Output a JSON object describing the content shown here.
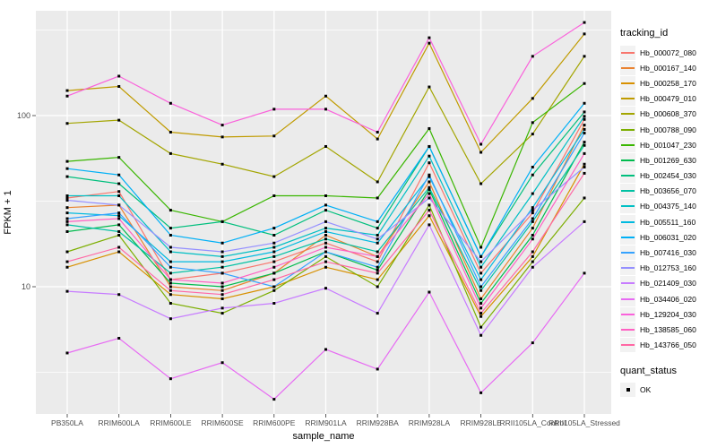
{
  "figure": {
    "panel_bg": "#EBEBEB",
    "grid_major_color": "#FFFFFF",
    "grid_minor_color": "#FFFFFF",
    "tick_color": "#333333",
    "tick_label_color": "#4D4D4D",
    "axis_title_color": "#000000",
    "marker_color": "#000000",
    "legend_key_bg": "#F2F2F2"
  },
  "axes": {
    "x_title": "sample_name",
    "y_title": "FPKM + 1",
    "y_ticks": [
      {
        "label": "100",
        "value": 100
      },
      {
        "label": "10",
        "value": 10
      }
    ],
    "y_minor_values": [
      3.162,
      31.62,
      316.2
    ]
  },
  "legend": {
    "tracking_title": "tracking_id",
    "quant_title": "quant_status",
    "quant_items": [
      {
        "label": "OK",
        "marker": "black-square-icon"
      }
    ]
  },
  "chart_data": {
    "type": "line",
    "title": "",
    "xlabel": "sample_name",
    "ylabel": "FPKM + 1",
    "y_scale": "log10",
    "ylim": [
      2,
      420
    ],
    "grid": true,
    "legend_position": "right",
    "marker": "small black square (quant_status = OK)",
    "categories": [
      "PB350LA",
      "RRIM600LA",
      "RRIM600LE",
      "RRIM600SE",
      "RRIM600PE",
      "RRIM901LA",
      "RRIM928BA",
      "RRIM928LA",
      "RRIM928LE",
      "RRII105LA_Control",
      "RRII105LA_Stressed"
    ],
    "series": [
      {
        "name": "Hb_000072_080",
        "color": "#F8766D",
        "values": [
          33,
          36,
          11,
          12,
          14,
          18,
          14,
          53,
          12,
          27,
          95
        ]
      },
      {
        "name": "Hb_000167_140",
        "color": "#EA8331",
        "values": [
          29,
          30,
          10,
          9.5,
          12,
          20,
          15,
          41,
          8.5,
          22,
          88
        ]
      },
      {
        "name": "Hb_000258_170",
        "color": "#D89000",
        "values": [
          13,
          16,
          9,
          8.5,
          10,
          13,
          11,
          26,
          6.7,
          15,
          52
        ]
      },
      {
        "name": "Hb_000479_010",
        "color": "#C09B00",
        "values": [
          140,
          148,
          80,
          75,
          76,
          130,
          73,
          265,
          61,
          126,
          300
        ]
      },
      {
        "name": "Hb_000608_370",
        "color": "#A3A500",
        "values": [
          90,
          94,
          60,
          52,
          44,
          66,
          41,
          147,
          40,
          78,
          222
        ]
      },
      {
        "name": "Hb_000788_090",
        "color": "#7CAE00",
        "values": [
          16,
          20,
          8,
          7,
          9.5,
          15,
          10,
          30,
          5.8,
          14,
          33
        ]
      },
      {
        "name": "Hb_001047_230",
        "color": "#39B600",
        "values": [
          54,
          57,
          28,
          24,
          34,
          34,
          33,
          84,
          17,
          91,
          154
        ]
      },
      {
        "name": "Hb_001269_630",
        "color": "#00BB4E",
        "values": [
          21,
          23,
          10.5,
          10,
          12,
          16,
          12.5,
          37,
          8,
          20,
          70
        ]
      },
      {
        "name": "Hb_002454_030",
        "color": "#00BF7D",
        "values": [
          44,
          40,
          22,
          24,
          20,
          28,
          22,
          66,
          15,
          45,
          105
        ]
      },
      {
        "name": "Hb_003656_070",
        "color": "#00C1A3",
        "values": [
          23,
          21,
          12,
          13,
          15,
          19,
          16,
          38,
          9.5,
          24,
          67
        ]
      },
      {
        "name": "Hb_004375_140",
        "color": "#00BFC4",
        "values": [
          34,
          34,
          16,
          15,
          17,
          22,
          20,
          58,
          13,
          35,
          99
        ]
      },
      {
        "name": "Hb_005511_160",
        "color": "#00BAE0",
        "values": [
          27,
          26,
          14,
          14,
          16,
          21,
          18,
          44,
          11,
          29,
          83
        ]
      },
      {
        "name": "Hb_006031_020",
        "color": "#00B0F6",
        "values": [
          49,
          45,
          20,
          18,
          22,
          30,
          24,
          66,
          15,
          50,
          118
        ]
      },
      {
        "name": "Hb_007416_030",
        "color": "#35A2FF",
        "values": [
          25,
          27,
          13,
          12,
          10,
          16,
          13,
          45,
          10,
          25,
          79
        ]
      },
      {
        "name": "Hb_012753_160",
        "color": "#9590FF",
        "values": [
          32,
          30,
          17,
          16,
          18,
          24,
          19,
          33,
          14,
          28,
          50
        ]
      },
      {
        "name": "Hb_021409_030",
        "color": "#C77CFF",
        "values": [
          9.4,
          9,
          6.5,
          7.5,
          8,
          9.8,
          7,
          23,
          5.2,
          13,
          24
        ]
      },
      {
        "name": "Hb_034406_020",
        "color": "#E76BF3",
        "values": [
          4.1,
          5,
          2.9,
          3.6,
          2.2,
          4.3,
          3.3,
          9.3,
          2.4,
          4.7,
          12
        ]
      },
      {
        "name": "Hb_129204_030",
        "color": "#FA62DB",
        "values": [
          130,
          170,
          118,
          88,
          109,
          109,
          80,
          285,
          68,
          222,
          350
        ]
      },
      {
        "name": "Hb_138585_060",
        "color": "#FF61C3",
        "values": [
          24,
          25,
          11,
          10.5,
          13,
          17,
          15,
          35,
          7.5,
          19,
          60
        ]
      },
      {
        "name": "Hb_143766_050",
        "color": "#FF67A4",
        "values": [
          14,
          17,
          9.5,
          9,
          11,
          14,
          12,
          28,
          7,
          16,
          46
        ]
      }
    ]
  }
}
